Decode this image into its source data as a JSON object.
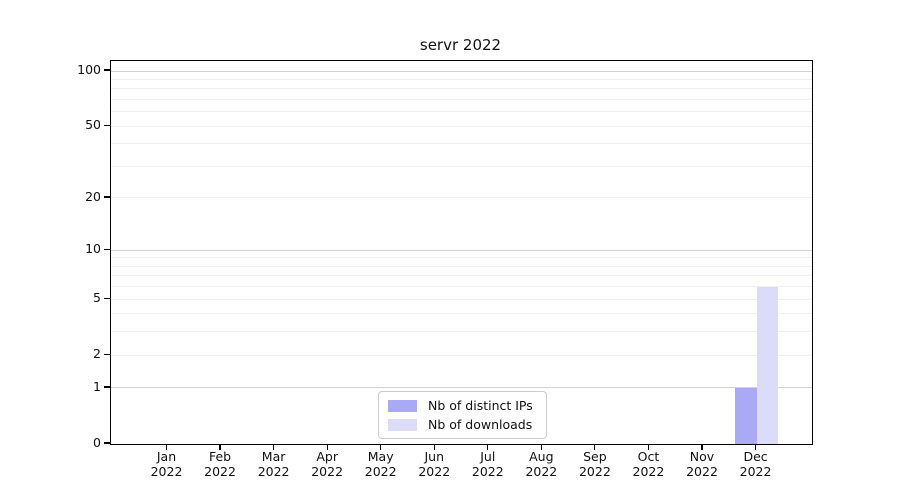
{
  "chart_data": {
    "type": "bar",
    "title": "servr 2022",
    "categories": [
      "Jan 2022",
      "Feb 2022",
      "Mar 2022",
      "Apr 2022",
      "May 2022",
      "Jun 2022",
      "Jul 2022",
      "Aug 2022",
      "Sep 2022",
      "Oct 2022",
      "Nov 2022",
      "Dec 2022"
    ],
    "x_tick_months": [
      "Jan",
      "Feb",
      "Mar",
      "Apr",
      "May",
      "Jun",
      "Jul",
      "Aug",
      "Sep",
      "Oct",
      "Nov",
      "Dec"
    ],
    "x_tick_year": "2022",
    "series": [
      {
        "name": "Nb of distinct IPs",
        "color": "#a9a9f5",
        "values": [
          0,
          0,
          0,
          0,
          0,
          0,
          0,
          0,
          0,
          0,
          0,
          1
        ]
      },
      {
        "name": "Nb of downloads",
        "color": "#dcdcf8",
        "values": [
          0,
          0,
          0,
          0,
          0,
          0,
          0,
          0,
          0,
          0,
          0,
          6
        ]
      }
    ],
    "y_axis": {
      "scale": "log1p",
      "tick_values": [
        0,
        1,
        2,
        5,
        10,
        20,
        50,
        100
      ],
      "minor_gridlines": [
        2,
        3,
        4,
        5,
        6,
        7,
        8,
        9,
        20,
        30,
        40,
        50,
        60,
        70,
        80,
        90
      ],
      "major_gridlines": [
        1,
        10,
        100
      ],
      "top_value": 100
    },
    "legend": {
      "position": "lower center"
    },
    "grid": true
  },
  "colors": {
    "background": "#ffffff",
    "axis": "#000000",
    "grid_minor": "#f0f0f0",
    "grid_major": "#d2d2d2",
    "legend_border": "#cccccc",
    "text": "#111111"
  }
}
